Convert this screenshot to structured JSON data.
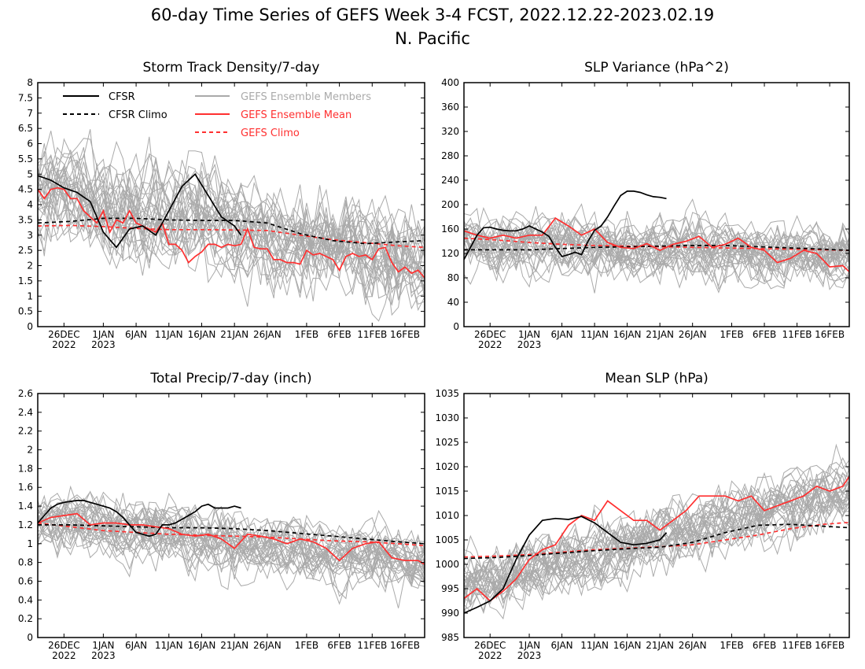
{
  "title": {
    "line1": "60-day Time Series of GEFS Week 3-4 FCST, 2022.12.22-2023.02.19",
    "line2": "N. Pacific"
  },
  "legend": {
    "cfsr": "CFSR",
    "cfsr_climo": "CFSR Climo",
    "members": "GEFS Ensemble Members",
    "ens_mean": "GEFS Ensemble Mean",
    "gefs_climo": "GEFS Climo"
  },
  "colors": {
    "cfsr": "#000000",
    "members": "#aaaaaa",
    "ens_mean": "#ff3030",
    "gefs_climo": "#ff3030",
    "cfsr_climo": "#000000"
  },
  "x_axis": {
    "range_days": [
      0,
      59
    ],
    "ticks": [
      {
        "day": 4,
        "label": "26DEC",
        "sub": "2022"
      },
      {
        "day": 10,
        "label": "1JAN",
        "sub": "2023"
      },
      {
        "day": 15,
        "label": "6JAN",
        "sub": ""
      },
      {
        "day": 20,
        "label": "11JAN",
        "sub": ""
      },
      {
        "day": 25,
        "label": "16JAN",
        "sub": ""
      },
      {
        "day": 30,
        "label": "21JAN",
        "sub": ""
      },
      {
        "day": 35,
        "label": "26JAN",
        "sub": ""
      },
      {
        "day": 41,
        "label": "1FEB",
        "sub": ""
      },
      {
        "day": 46,
        "label": "6FEB",
        "sub": ""
      },
      {
        "day": 51,
        "label": "11FEB",
        "sub": ""
      },
      {
        "day": 56,
        "label": "16FEB",
        "sub": ""
      }
    ]
  },
  "chart_data": [
    {
      "type": "line",
      "title": "Storm Track Density/7-day",
      "ylim": [
        0,
        8
      ],
      "yticks": [
        0,
        0.5,
        1,
        1.5,
        2,
        2.5,
        3,
        3.5,
        4,
        4.5,
        5,
        5.5,
        6,
        6.5,
        7,
        7.5,
        8
      ],
      "members_spread": {
        "center": [
          4.5,
          2.0
        ],
        "spread": 1.5
      },
      "series": [
        {
          "name": "CFSR",
          "x": [
            0,
            2,
            4,
            6,
            8,
            10,
            12,
            14,
            16,
            18,
            20,
            22,
            24,
            26,
            28,
            30,
            31
          ],
          "y": [
            4.95,
            4.8,
            4.55,
            4.4,
            4.1,
            3.1,
            2.6,
            3.2,
            3.3,
            3.0,
            3.8,
            4.6,
            5.0,
            4.3,
            3.6,
            3.3,
            3.0
          ]
        },
        {
          "name": "CFSR Climo",
          "x": [
            0,
            5,
            10,
            15,
            20,
            25,
            30,
            35,
            40,
            45,
            50,
            55,
            59
          ],
          "y": [
            3.4,
            3.45,
            3.55,
            3.55,
            3.5,
            3.48,
            3.48,
            3.4,
            3.05,
            2.82,
            2.72,
            2.78,
            2.82
          ]
        },
        {
          "name": "GEFS Ensemble Mean",
          "x": [
            0,
            1,
            2,
            3,
            4,
            5,
            6,
            7,
            8,
            9,
            10,
            11,
            12,
            13,
            14,
            15,
            16,
            17,
            18,
            19,
            20,
            21,
            22,
            23,
            24,
            25,
            26,
            27,
            28,
            29,
            30,
            31,
            32,
            33,
            34,
            35,
            36,
            37,
            38,
            39,
            40,
            41,
            42,
            43,
            44,
            45,
            46,
            47,
            48,
            49,
            50,
            51,
            52,
            53,
            54,
            55,
            56,
            57,
            58,
            59
          ],
          "y": [
            4.5,
            4.2,
            4.5,
            4.55,
            4.5,
            4.2,
            4.2,
            3.8,
            3.6,
            3.4,
            3.8,
            3.1,
            3.5,
            3.4,
            3.8,
            3.4,
            3.3,
            3.2,
            3.1,
            3.4,
            2.7,
            2.7,
            2.5,
            2.1,
            2.3,
            2.45,
            2.7,
            2.7,
            2.6,
            2.7,
            2.65,
            2.7,
            3.2,
            2.6,
            2.55,
            2.55,
            2.2,
            2.2,
            2.1,
            2.1,
            2.05,
            2.5,
            2.35,
            2.4,
            2.3,
            2.2,
            1.85,
            2.3,
            2.4,
            2.3,
            2.35,
            2.2,
            2.55,
            2.6,
            2.1,
            1.8,
            1.95,
            1.75,
            1.85,
            1.6
          ]
        },
        {
          "name": "GEFS Climo",
          "x": [
            0,
            5,
            10,
            15,
            20,
            25,
            30,
            35,
            40,
            45,
            50,
            55,
            59
          ],
          "y": [
            3.3,
            3.32,
            3.28,
            3.22,
            3.18,
            3.18,
            3.17,
            3.15,
            3.0,
            2.85,
            2.75,
            2.65,
            2.6
          ]
        }
      ]
    },
    {
      "type": "line",
      "title": "SLP Variance (hPa^2)",
      "ylim": [
        0,
        400
      ],
      "yticks": [
        0,
        40,
        80,
        120,
        160,
        200,
        240,
        280,
        320,
        360,
        400
      ],
      "members_spread": {
        "center": [
          140,
          115
        ],
        "spread": 45
      },
      "series": [
        {
          "name": "CFSR",
          "x": [
            0,
            1,
            2,
            3,
            4,
            5,
            6,
            7,
            8,
            9,
            10,
            11,
            12,
            13,
            14,
            15,
            16,
            17,
            18,
            19,
            20,
            21,
            22,
            23,
            24,
            25,
            26,
            27,
            28,
            29,
            30,
            31
          ],
          "y": [
            110,
            130,
            150,
            162,
            163,
            160,
            158,
            157,
            157,
            160,
            165,
            160,
            155,
            148,
            130,
            115,
            118,
            122,
            118,
            140,
            158,
            165,
            180,
            198,
            215,
            222,
            222,
            220,
            216,
            213,
            212,
            210
          ]
        },
        {
          "name": "CFSR Climo",
          "x": [
            0,
            5,
            10,
            15,
            20,
            25,
            30,
            35,
            40,
            45,
            50,
            55,
            59
          ],
          "y": [
            126,
            126,
            126,
            128,
            130,
            131,
            132,
            133,
            133,
            131,
            129,
            127,
            125
          ]
        },
        {
          "name": "GEFS Ensemble Mean",
          "x": [
            0,
            2,
            4,
            6,
            8,
            10,
            12,
            14,
            16,
            18,
            20,
            22,
            24,
            26,
            28,
            30,
            32,
            34,
            36,
            38,
            40,
            42,
            44,
            46,
            48,
            50,
            52,
            54,
            56,
            58,
            59
          ],
          "y": [
            157,
            150,
            145,
            150,
            145,
            150,
            150,
            178,
            165,
            150,
            160,
            138,
            130,
            128,
            136,
            125,
            135,
            140,
            148,
            130,
            135,
            145,
            130,
            125,
            105,
            112,
            125,
            120,
            98,
            100,
            90
          ]
        },
        {
          "name": "GEFS Climo",
          "x": [
            0,
            5,
            10,
            15,
            20,
            25,
            30,
            35,
            40,
            45,
            50,
            55,
            59
          ],
          "y": [
            145,
            142,
            138,
            135,
            133,
            132,
            131,
            130,
            129,
            128,
            127,
            126,
            125
          ]
        }
      ]
    },
    {
      "type": "line",
      "title": "Total Precip/7-day (inch)",
      "ylim": [
        0,
        2.6
      ],
      "yticks": [
        0,
        0.2,
        0.4,
        0.6,
        0.8,
        1,
        1.2,
        1.4,
        1.6,
        1.8,
        2,
        2.2,
        2.4,
        2.6
      ],
      "members_spread": {
        "center": [
          1.25,
          0.8
        ],
        "spread": 0.3
      },
      "series": [
        {
          "name": "CFSR",
          "x": [
            0,
            1,
            2,
            3,
            4,
            5,
            6,
            7,
            8,
            9,
            10,
            11,
            12,
            13,
            14,
            15,
            16,
            17,
            18,
            19,
            20,
            21,
            22,
            23,
            24,
            25,
            26,
            27,
            28,
            29,
            30,
            31
          ],
          "y": [
            1.22,
            1.3,
            1.38,
            1.42,
            1.44,
            1.45,
            1.46,
            1.46,
            1.44,
            1.42,
            1.4,
            1.38,
            1.34,
            1.28,
            1.2,
            1.12,
            1.1,
            1.08,
            1.1,
            1.2,
            1.2,
            1.22,
            1.26,
            1.3,
            1.34,
            1.4,
            1.42,
            1.38,
            1.38,
            1.38,
            1.4,
            1.38
          ]
        },
        {
          "name": "CFSR Climo",
          "x": [
            0,
            5,
            10,
            15,
            20,
            25,
            30,
            35,
            40,
            45,
            50,
            55,
            59
          ],
          "y": [
            1.2,
            1.2,
            1.19,
            1.18,
            1.17,
            1.17,
            1.16,
            1.14,
            1.11,
            1.08,
            1.05,
            1.02,
            1.0
          ]
        },
        {
          "name": "GEFS Ensemble Mean",
          "x": [
            0,
            2,
            4,
            6,
            8,
            10,
            12,
            14,
            16,
            18,
            20,
            22,
            24,
            26,
            28,
            30,
            32,
            34,
            36,
            38,
            40,
            42,
            44,
            46,
            48,
            50,
            52,
            54,
            56,
            58,
            59
          ],
          "y": [
            1.22,
            1.28,
            1.3,
            1.32,
            1.2,
            1.22,
            1.22,
            1.2,
            1.2,
            1.18,
            1.16,
            1.1,
            1.08,
            1.1,
            1.05,
            0.95,
            1.1,
            1.08,
            1.05,
            1.0,
            1.05,
            1.02,
            0.95,
            0.82,
            0.95,
            1.0,
            1.02,
            0.85,
            0.82,
            0.82,
            0.78
          ]
        },
        {
          "name": "GEFS Climo",
          "x": [
            0,
            5,
            10,
            15,
            20,
            25,
            30,
            35,
            40,
            45,
            50,
            55,
            59
          ],
          "y": [
            1.22,
            1.18,
            1.14,
            1.12,
            1.1,
            1.09,
            1.08,
            1.07,
            1.05,
            1.03,
            1.02,
            1.0,
            0.98
          ]
        }
      ]
    },
    {
      "type": "line",
      "title": "Mean SLP (hPa)",
      "ylim": [
        985,
        1035
      ],
      "yticks": [
        985,
        990,
        995,
        1000,
        1005,
        1010,
        1015,
        1020,
        1025,
        1030,
        1035
      ],
      "members_spread": {
        "center": [
          995,
          1015
        ],
        "spread": 6
      },
      "series": [
        {
          "name": "CFSR",
          "x": [
            0,
            2,
            4,
            6,
            8,
            10,
            12,
            14,
            16,
            18,
            20,
            22,
            24,
            26,
            28,
            30,
            31
          ],
          "y": [
            990,
            991.2,
            992.5,
            995,
            1001,
            1006,
            1009,
            1009.4,
            1009.2,
            1009.8,
            1008.5,
            1006.5,
            1004.5,
            1004,
            1004.3,
            1005,
            1006.5
          ]
        },
        {
          "name": "CFSR Climo",
          "x": [
            0,
            5,
            10,
            15,
            20,
            25,
            30,
            35,
            40,
            45,
            50,
            55,
            59
          ],
          "y": [
            1001.2,
            1001.4,
            1001.8,
            1002.3,
            1002.8,
            1003.2,
            1003.5,
            1004.5,
            1006.5,
            1008.0,
            1008.2,
            1007.8,
            1007.5
          ]
        },
        {
          "name": "GEFS Ensemble Mean",
          "x": [
            0,
            2,
            4,
            6,
            8,
            10,
            12,
            14,
            16,
            18,
            20,
            22,
            24,
            26,
            28,
            30,
            32,
            34,
            36,
            38,
            40,
            42,
            44,
            46,
            48,
            50,
            52,
            54,
            56,
            58,
            59
          ],
          "y": [
            993,
            995,
            992.5,
            994.5,
            997,
            1001,
            1003,
            1004,
            1008,
            1010,
            1009,
            1013,
            1011,
            1009,
            1009,
            1007,
            1009,
            1011,
            1014,
            1014,
            1014,
            1013,
            1014,
            1011,
            1012,
            1013,
            1014,
            1016,
            1015,
            1016,
            1018
          ]
        },
        {
          "name": "GEFS Climo",
          "x": [
            0,
            5,
            10,
            15,
            20,
            25,
            30,
            35,
            40,
            45,
            50,
            55,
            59
          ],
          "y": [
            1001.5,
            1001.7,
            1002,
            1002.5,
            1003,
            1003.3,
            1003.6,
            1004,
            1005,
            1006,
            1007.3,
            1008.2,
            1008.6
          ]
        }
      ]
    }
  ]
}
